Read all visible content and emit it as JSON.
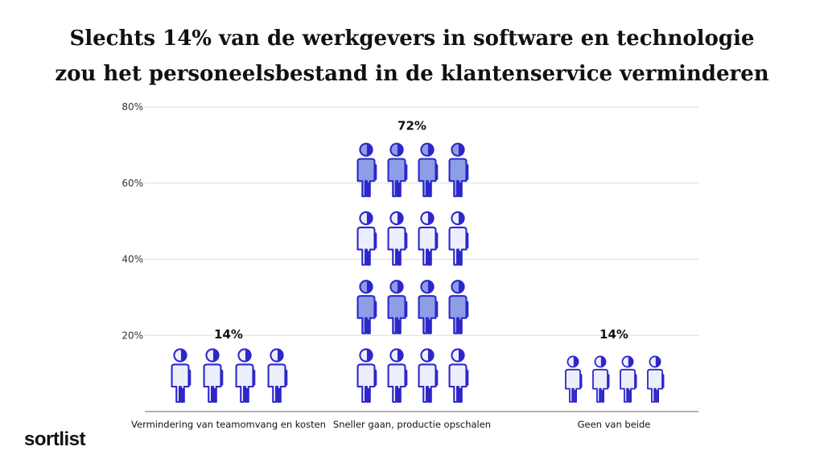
{
  "title": {
    "line1": "Slechts 14% van de werkgevers in software en technologie",
    "line2": "zou het personeelsbestand in de klantenservice verminderen"
  },
  "brand": "sortlist",
  "colors": {
    "icon_fill_light": "#eceffb",
    "icon_fill_blue": "#8e9ee6",
    "icon_stroke": "#2d27c9",
    "grid": "#dddddd",
    "axis": "#666666",
    "text": "#111111"
  },
  "chart_data": {
    "type": "bar",
    "style": "pictograph",
    "icon": "person-icon",
    "categories": [
      "Vermindering van teamomvang en kosten",
      "Sneller gaan, productie opschalen",
      "Geen van beide"
    ],
    "values": [
      14,
      72,
      14
    ],
    "data_labels": [
      "14%",
      "72%",
      "14%"
    ],
    "ylim": [
      0,
      80
    ],
    "yticks": [
      "20%",
      "40%",
      "60%",
      "80%"
    ],
    "grid": true,
    "legend": "none"
  }
}
